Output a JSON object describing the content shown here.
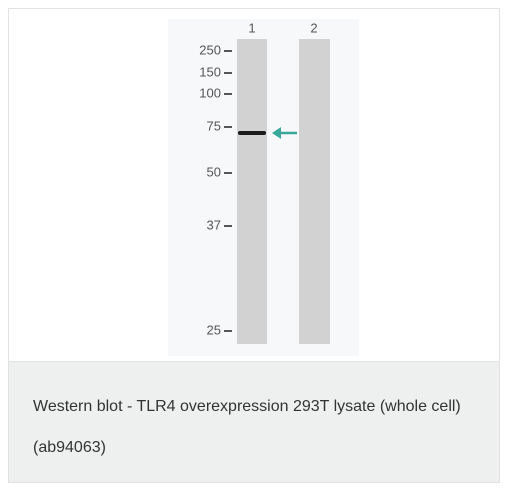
{
  "blot": {
    "lane_labels": [
      "1",
      "2"
    ],
    "markers": [
      "250",
      "150",
      "100",
      "75",
      "50",
      "37",
      "25"
    ]
  },
  "caption": "Western blot - TLR4 overexpression 293T lysate (whole cell) (ab94063)"
}
